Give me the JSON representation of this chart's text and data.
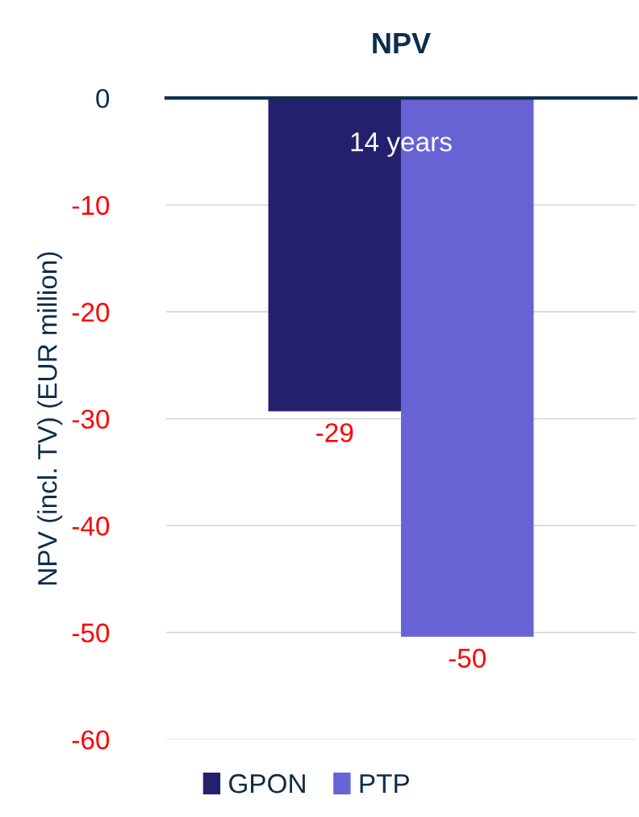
{
  "chart_data": {
    "type": "bar",
    "title": "NPV",
    "ylabel": "NPV (incl. TV) (EUR million)",
    "categories": [
      "14 years"
    ],
    "series": [
      {
        "name": "GPON",
        "color": "#24206e",
        "values": [
          -29.3
        ],
        "value_labels": [
          "-29"
        ]
      },
      {
        "name": "PTP",
        "color": "#6863d4",
        "values": [
          -50.4
        ],
        "value_labels": [
          "-50"
        ]
      }
    ],
    "ylim": [
      -60,
      0
    ],
    "yticks": [
      0,
      -10,
      -20,
      -30,
      -40,
      -50,
      -60
    ],
    "grid": "y",
    "legend": "bottom"
  }
}
